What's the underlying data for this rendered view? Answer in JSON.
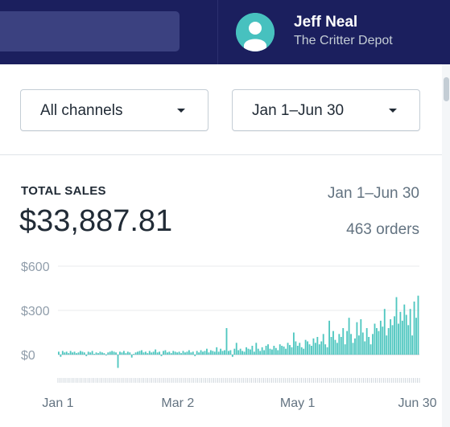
{
  "header": {
    "user_name": "Jeff Neal",
    "store_name": "The Critter Depot",
    "bar_color": "#1b1f5e"
  },
  "filters": {
    "channel": "All channels",
    "date_range": "Jan 1–Jun 30"
  },
  "total_sales": {
    "title": "TOTAL SALES",
    "date_range": "Jan 1–Jun 30",
    "amount": "$33,887.81",
    "orders": "463 orders"
  },
  "chart_data": {
    "type": "bar",
    "title": "",
    "xlabel": "",
    "ylabel": "",
    "ylim": [
      -60,
      650
    ],
    "ytick_labels": [
      "$600",
      "$300",
      "$0"
    ],
    "ytick_values": [
      600,
      300,
      0
    ],
    "xtick_labels": [
      "Jan 1",
      "Mar 2",
      "May 1",
      "Jun 30"
    ],
    "xtick_days": [
      0,
      60,
      120,
      180
    ],
    "bar_color": "#50c7c0",
    "series": [
      {
        "x_start": "Jan 1",
        "values": [
          20,
          -15,
          25,
          15,
          20,
          10,
          25,
          15,
          20,
          10,
          15,
          25,
          20,
          15,
          -10,
          20,
          15,
          25,
          5,
          15,
          10,
          20,
          15,
          10,
          -5,
          15,
          20,
          25,
          20,
          15,
          -90,
          20,
          15,
          25,
          10,
          20,
          15,
          -20,
          5,
          15,
          20,
          25,
          30,
          15,
          20,
          10,
          25,
          15,
          20,
          35,
          15,
          20,
          -10,
          25,
          30,
          15,
          20,
          10,
          25,
          20,
          15,
          20,
          10,
          25,
          15,
          20,
          30,
          15,
          20,
          -10,
          25,
          15,
          30,
          20,
          25,
          40,
          15,
          30,
          25,
          20,
          50,
          20,
          40,
          25,
          30,
          180,
          25,
          30,
          -15,
          40,
          80,
          30,
          40,
          25,
          20,
          50,
          40,
          35,
          60,
          20,
          80,
          40,
          25,
          50,
          30,
          60,
          70,
          40,
          35,
          60,
          45,
          30,
          70,
          60,
          55,
          40,
          80,
          65,
          50,
          150,
          90,
          60,
          80,
          50,
          40,
          100,
          90,
          70,
          60,
          110,
          80,
          120,
          70,
          90,
          140,
          70,
          50,
          230,
          120,
          160,
          100,
          80,
          140,
          120,
          180,
          70,
          160,
          250,
          140,
          80,
          110,
          220,
          130,
          240,
          150,
          90,
          180,
          120,
          70,
          140,
          210,
          180,
          160,
          230,
          190,
          310,
          130,
          180,
          240,
          200,
          260,
          390,
          210,
          290,
          230,
          340,
          270,
          200,
          310,
          130,
          360,
          250,
          400
        ]
      }
    ]
  }
}
